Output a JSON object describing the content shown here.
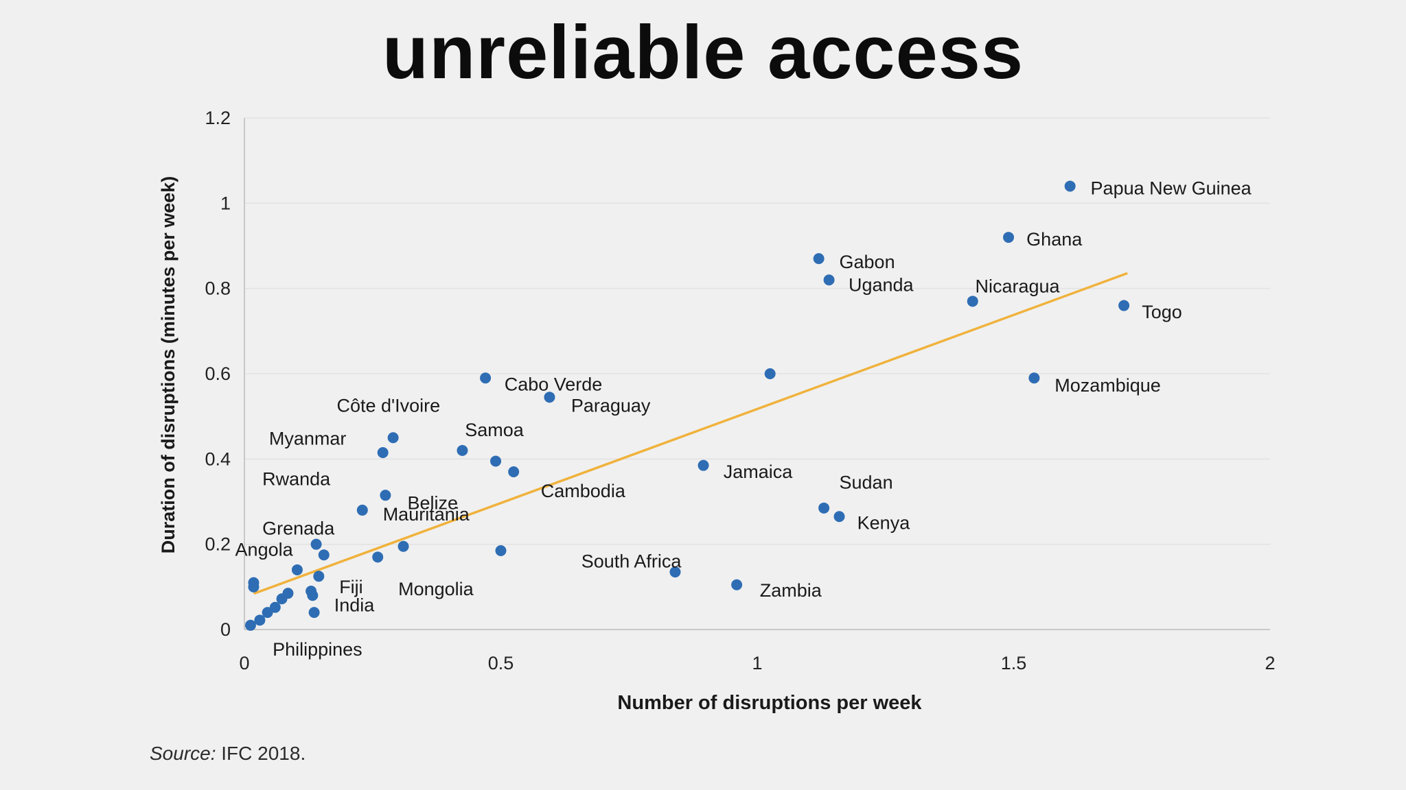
{
  "slide": {
    "title": "unreliable access",
    "source_label": "Source:",
    "source_text": "IFC 2018."
  },
  "colors": {
    "background": "#f0f0f0",
    "point": "#2e6db4",
    "trendline": "#f0b23c",
    "grid": "#e2e2e2",
    "axis": "#c8c8c8",
    "text": "#1a1a1a"
  },
  "chart_data": {
    "type": "scatter",
    "title": "",
    "xlabel": "Number of disruptions per week",
    "ylabel": "Duration of disruptions (minutes per week)",
    "xlim": [
      0,
      2
    ],
    "ylim": [
      0,
      1.2
    ],
    "xticks": [
      0,
      0.5,
      1,
      1.5,
      2
    ],
    "xtick_labels": [
      "0",
      "0.5",
      "1",
      "1.5",
      "2"
    ],
    "yticks": [
      0,
      0.2,
      0.4,
      0.6,
      0.8,
      1,
      1.2
    ],
    "ytick_labels": [
      "0",
      "0.2",
      "0.4",
      "0.6",
      "0.8",
      "1",
      "1.2"
    ],
    "grid": "horizontal",
    "trendline": {
      "x": [
        0.02,
        1.72
      ],
      "y": [
        0.085,
        0.835
      ]
    },
    "points": [
      {
        "x": 1.61,
        "y": 1.04
      },
      {
        "x": 1.49,
        "y": 0.92
      },
      {
        "x": 1.12,
        "y": 0.87
      },
      {
        "x": 1.14,
        "y": 0.82
      },
      {
        "x": 1.42,
        "y": 0.77
      },
      {
        "x": 1.715,
        "y": 0.76
      },
      {
        "x": 1.54,
        "y": 0.59
      },
      {
        "x": 1.025,
        "y": 0.6
      },
      {
        "x": 0.47,
        "y": 0.59
      },
      {
        "x": 0.595,
        "y": 0.545
      },
      {
        "x": 0.29,
        "y": 0.45
      },
      {
        "x": 0.27,
        "y": 0.415
      },
      {
        "x": 0.425,
        "y": 0.42
      },
      {
        "x": 0.49,
        "y": 0.395
      },
      {
        "x": 0.525,
        "y": 0.37
      },
      {
        "x": 0.895,
        "y": 0.385
      },
      {
        "x": 0.275,
        "y": 0.315
      },
      {
        "x": 0.23,
        "y": 0.28
      },
      {
        "x": 1.13,
        "y": 0.285
      },
      {
        "x": 1.16,
        "y": 0.265
      },
      {
        "x": 0.14,
        "y": 0.2
      },
      {
        "x": 0.155,
        "y": 0.175
      },
      {
        "x": 0.31,
        "y": 0.195
      },
      {
        "x": 0.26,
        "y": 0.17
      },
      {
        "x": 0.5,
        "y": 0.185
      },
      {
        "x": 0.84,
        "y": 0.135
      },
      {
        "x": 0.96,
        "y": 0.105
      },
      {
        "x": 0.103,
        "y": 0.14
      },
      {
        "x": 0.145,
        "y": 0.125
      },
      {
        "x": 0.018,
        "y": 0.11
      },
      {
        "x": 0.018,
        "y": 0.1
      },
      {
        "x": 0.085,
        "y": 0.085
      },
      {
        "x": 0.13,
        "y": 0.09
      },
      {
        "x": 0.133,
        "y": 0.08
      },
      {
        "x": 0.073,
        "y": 0.072
      },
      {
        "x": 0.06,
        "y": 0.052
      },
      {
        "x": 0.045,
        "y": 0.04
      },
      {
        "x": 0.136,
        "y": 0.04
      },
      {
        "x": 0.03,
        "y": 0.022
      },
      {
        "x": 0.012,
        "y": 0.01
      }
    ],
    "annotations": [
      {
        "text": "Papua New Guinea",
        "x": 1.65,
        "y": 1.035
      },
      {
        "text": "Ghana",
        "x": 1.525,
        "y": 0.915
      },
      {
        "text": "Gabon",
        "x": 1.16,
        "y": 0.862
      },
      {
        "text": "Uganda",
        "x": 1.178,
        "y": 0.808
      },
      {
        "text": "Nicaragua",
        "x": 1.425,
        "y": 0.805
      },
      {
        "text": "Togo",
        "x": 1.75,
        "y": 0.745
      },
      {
        "text": "Mozambique",
        "x": 1.58,
        "y": 0.573
      },
      {
        "text": "Cabo Verde",
        "x": 0.507,
        "y": 0.575
      },
      {
        "text": "Paraguay",
        "x": 0.637,
        "y": 0.525
      },
      {
        "text": "Côte d'Ivoire",
        "x": 0.18,
        "y": 0.525
      },
      {
        "text": "Myanmar",
        "x": 0.048,
        "y": 0.448
      },
      {
        "text": "Samoa",
        "x": 0.43,
        "y": 0.468
      },
      {
        "text": "Jamaica",
        "x": 0.934,
        "y": 0.37
      },
      {
        "text": "Rwanda",
        "x": 0.035,
        "y": 0.353
      },
      {
        "text": "Belize",
        "x": 0.318,
        "y": 0.297
      },
      {
        "text": "Cambodia",
        "x": 0.578,
        "y": 0.325
      },
      {
        "text": "Sudan",
        "x": 1.16,
        "y": 0.345
      },
      {
        "text": "Mauritania",
        "x": 0.27,
        "y": 0.27
      },
      {
        "text": "Kenya",
        "x": 1.195,
        "y": 0.25
      },
      {
        "text": "Grenada",
        "x": 0.035,
        "y": 0.237
      },
      {
        "text": "Angola",
        "x": -0.018,
        "y": 0.187
      },
      {
        "text": "South Africa",
        "x": 0.657,
        "y": 0.16
      },
      {
        "text": "Fiji",
        "x": 0.185,
        "y": 0.1
      },
      {
        "text": "Mongolia",
        "x": 0.3,
        "y": 0.095
      },
      {
        "text": "Zambia",
        "x": 1.005,
        "y": 0.092
      },
      {
        "text": "India",
        "x": 0.175,
        "y": 0.057
      },
      {
        "text": "Philippines",
        "x": 0.055,
        "y": -0.047
      }
    ]
  }
}
